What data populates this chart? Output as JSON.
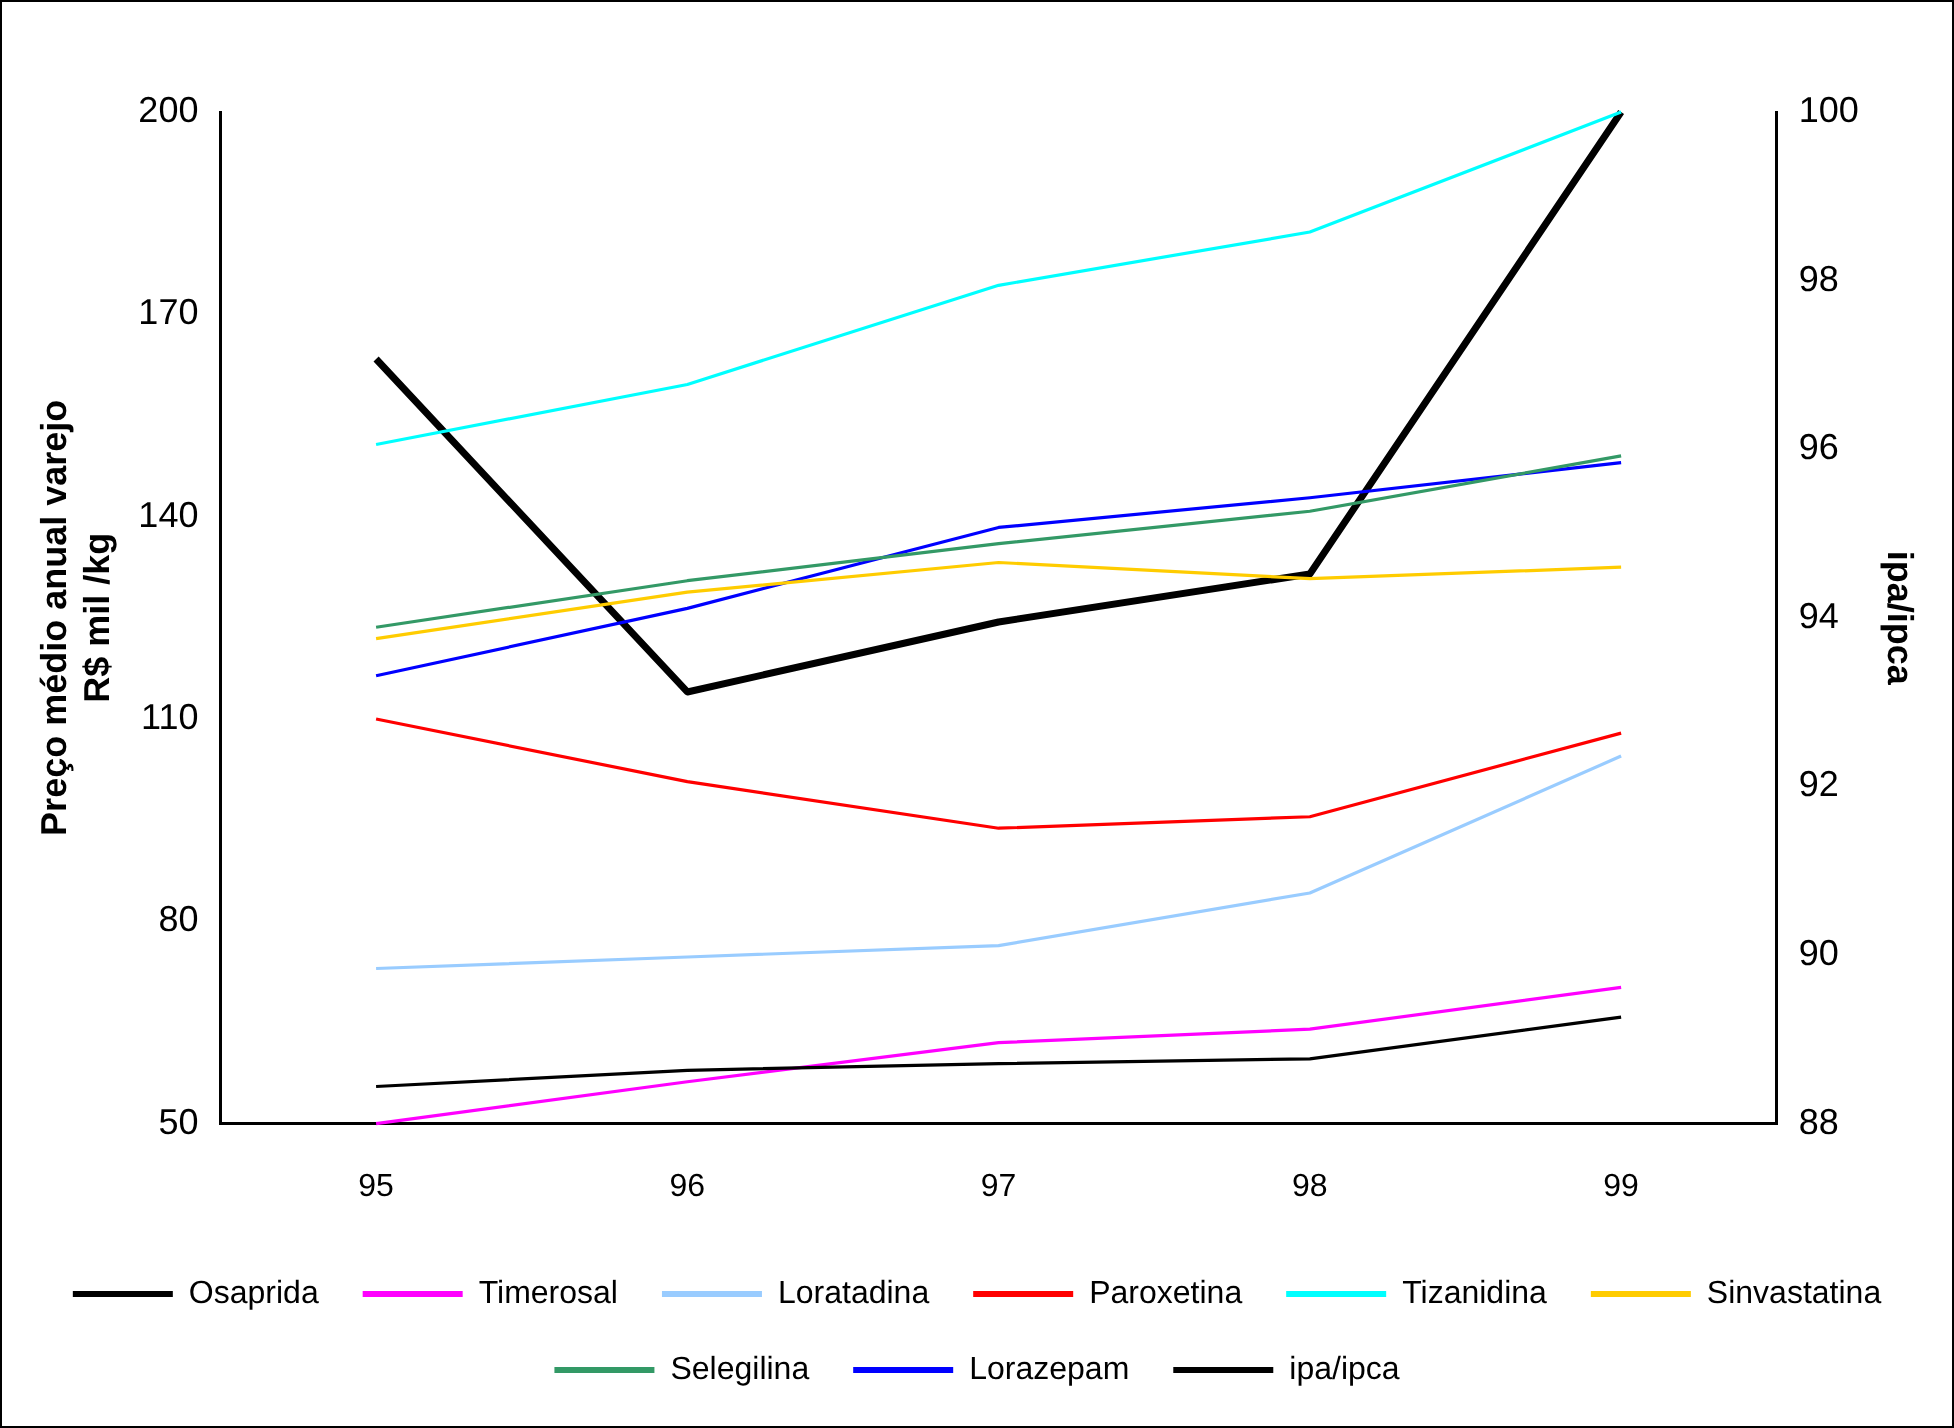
{
  "chart_data": {
    "type": "line",
    "ylabel": "Preço médio anual varejo\nR$ mil /kg",
    "y2label": "ipa/ipca",
    "categories": [
      "95",
      "96",
      "97",
      "98",
      "99"
    ],
    "ylim": [
      50,
      200
    ],
    "yticks": [
      50,
      80,
      110,
      140,
      170,
      200
    ],
    "y2lim": [
      88,
      100
    ],
    "y2ticks": [
      88,
      90,
      92,
      94,
      96,
      98,
      100
    ],
    "grid": false,
    "legend": "bottom",
    "marker": "none",
    "series": [
      {
        "name": "Osaprida",
        "color": "#000000",
        "values": [
          55.5,
          57.9,
          58.9,
          59.6,
          65.8
        ]
      },
      {
        "name": "Timerosal",
        "color": "#ff00ff",
        "values": [
          50,
          56.2,
          62,
          64,
          70.2
        ]
      },
      {
        "name": "Loratadina",
        "color": "#99ccff",
        "values": [
          73,
          74.7,
          76.4,
          84.2,
          104.5
        ]
      },
      {
        "name": "Paroxetina",
        "color": "#ff0000",
        "values": [
          110,
          100.7,
          93.8,
          95.5,
          107.9
        ]
      },
      {
        "name": "Tizanidina",
        "color": "#00ffff",
        "values": [
          150.7,
          159.6,
          174.3,
          182.2,
          200
        ]
      },
      {
        "name": "Sinvastatina",
        "color": "#ffcc00",
        "values": [
          121.9,
          128.8,
          133.2,
          130.8,
          132.5
        ]
      },
      {
        "name": "Selegilina",
        "color": "#339966",
        "values": [
          123.6,
          130.5,
          136,
          140.8,
          149
        ]
      },
      {
        "name": "Lorazepam",
        "color": "#0000ff",
        "values": [
          116.4,
          126.4,
          138.4,
          142.8,
          148
        ]
      },
      {
        "name": "ipa/ipca",
        "color": "#000000",
        "axis": "y2",
        "values": [
          97.07,
          93.12,
          93.95,
          94.52,
          100
        ]
      }
    ]
  }
}
